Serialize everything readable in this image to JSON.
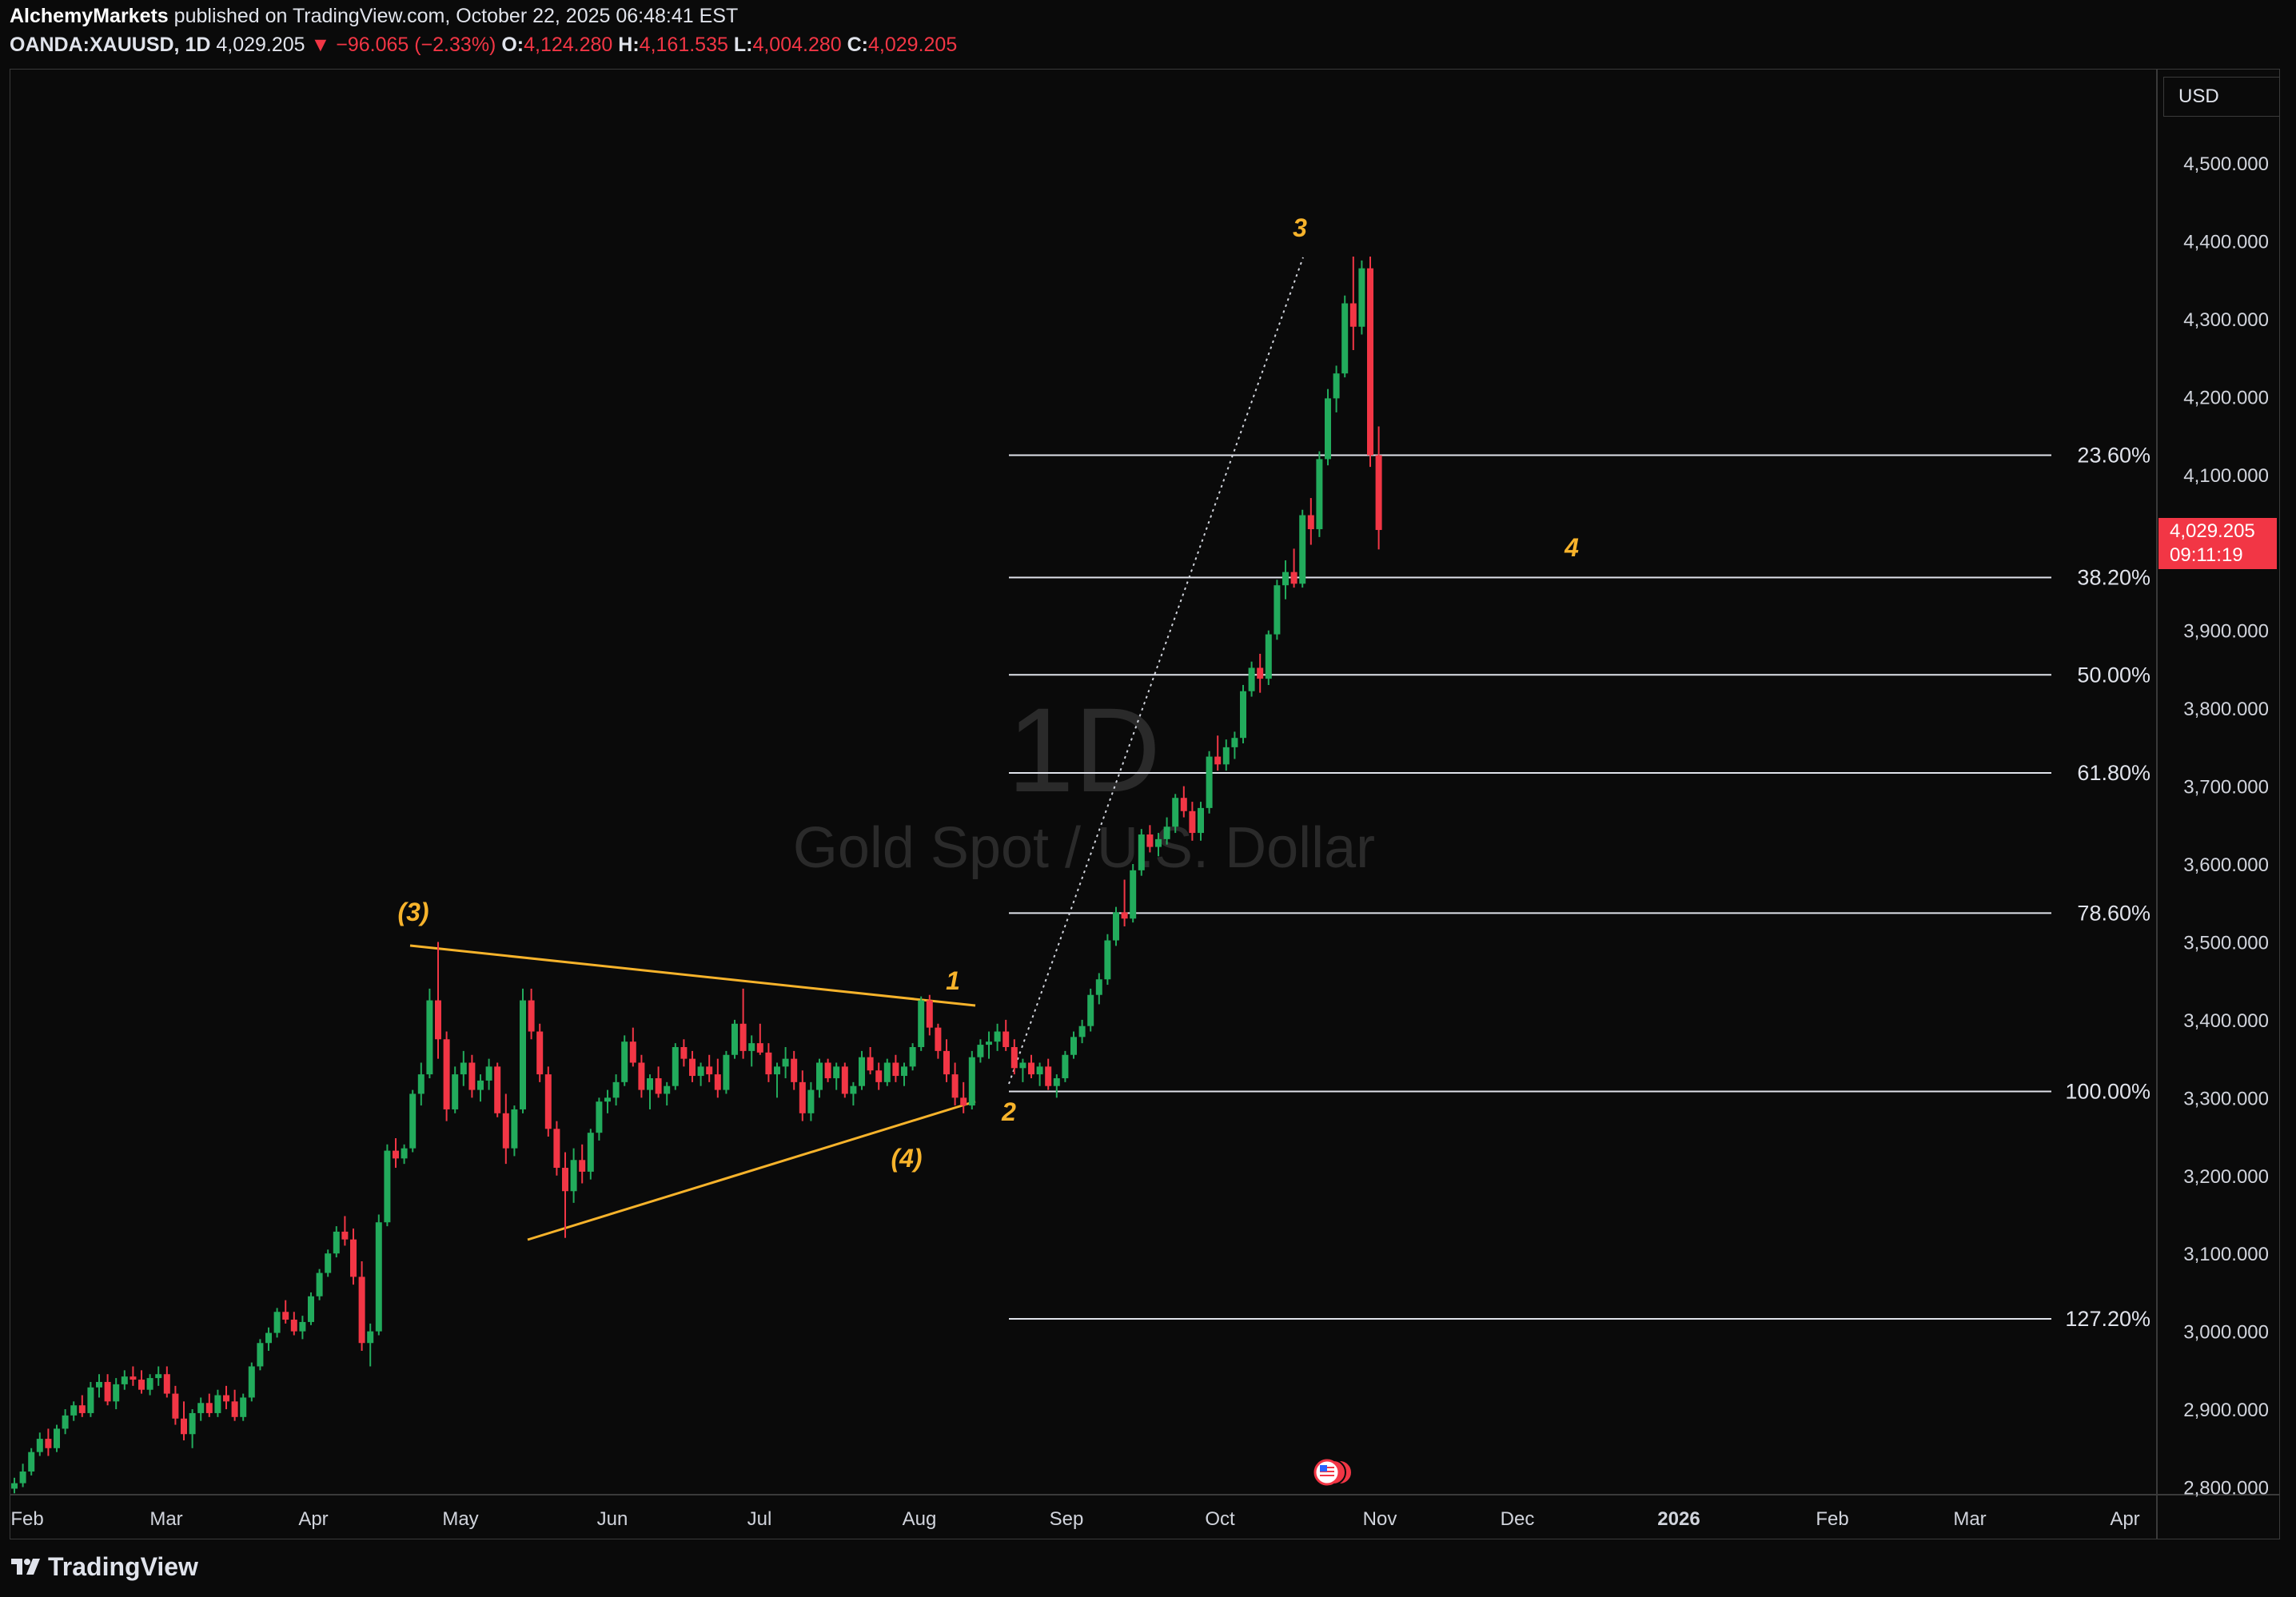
{
  "header": {
    "publisher": "AlchemyMarkets",
    "published_text": "published on TradingView.com, October 22, 2025 06:48:41 EST",
    "symbol": "OANDA:XAUUSD, 1D",
    "last": "4,029.205",
    "change": "▼ −96.065 (−2.33%)",
    "o_label": "O:",
    "o_val": "4,124.280",
    "h_label": "H:",
    "h_val": "4,161.535",
    "l_label": "L:",
    "l_val": "4,004.280",
    "c_label": "C:",
    "c_val": "4,029.205"
  },
  "currency_button": "USD",
  "price_tag": {
    "price": "4,029.205",
    "countdown": "09:11:19"
  },
  "watermark": {
    "interval": "1D",
    "name": "Gold Spot / U.S. Dollar"
  },
  "footer": {
    "brand": "TradingView"
  },
  "colors": {
    "up": "#22ab5c",
    "down": "#f23645",
    "wave": "#f7b32b",
    "fib": "#e0e3eb"
  },
  "chart_data": {
    "type": "candlestick",
    "symbol": "OANDA:XAUUSD",
    "interval": "1D",
    "y_ticks": [
      "4,500.000",
      "4,400.000",
      "4,300.000",
      "4,200.000",
      "4,100.000",
      "4,000.000",
      "3,900.000",
      "3,800.000",
      "3,700.000",
      "3,600.000",
      "3,500.000",
      "3,400.000",
      "3,300.000",
      "3,200.000",
      "3,100.000",
      "3,000.000",
      "2,900.000",
      "2,800.000"
    ],
    "x_ticks": [
      "Feb",
      "Mar",
      "Apr",
      "May",
      "Jun",
      "Jul",
      "Aug",
      "Sep",
      "Oct",
      "Nov",
      "Dec",
      "2026",
      "Feb",
      "Mar",
      "Apr"
    ],
    "ylim": [
      2800,
      4580
    ],
    "fib_levels": [
      {
        "label": "23.60%",
        "price": 4125
      },
      {
        "label": "38.20%",
        "price": 3968
      },
      {
        "label": "50.00%",
        "price": 3843
      },
      {
        "label": "61.80%",
        "price": 3717
      },
      {
        "label": "78.60%",
        "price": 3537
      },
      {
        "label": "100.00%",
        "price": 3308
      },
      {
        "label": "127.20%",
        "price": 3016
      }
    ],
    "wave_labels": [
      "(3)",
      "(4)",
      "1",
      "2",
      "3",
      "4"
    ],
    "candles_approx": [
      [
        0,
        2798,
        2812,
        2792,
        2805
      ],
      [
        1,
        2805,
        2830,
        2800,
        2820
      ],
      [
        2,
        2820,
        2850,
        2815,
        2845
      ],
      [
        3,
        2845,
        2870,
        2840,
        2862
      ],
      [
        4,
        2862,
        2875,
        2840,
        2850
      ],
      [
        5,
        2850,
        2880,
        2845,
        2875
      ],
      [
        6,
        2875,
        2900,
        2868,
        2892
      ],
      [
        7,
        2892,
        2910,
        2885,
        2905
      ],
      [
        8,
        2905,
        2918,
        2890,
        2895
      ],
      [
        9,
        2895,
        2935,
        2890,
        2928
      ],
      [
        10,
        2928,
        2945,
        2915,
        2935
      ],
      [
        11,
        2935,
        2945,
        2905,
        2910
      ],
      [
        12,
        2910,
        2940,
        2900,
        2932
      ],
      [
        13,
        2932,
        2950,
        2925,
        2942
      ],
      [
        14,
        2942,
        2955,
        2930,
        2938
      ],
      [
        15,
        2938,
        2950,
        2920,
        2925
      ],
      [
        16,
        2925,
        2945,
        2918,
        2940
      ],
      [
        17,
        2940,
        2955,
        2930,
        2945
      ],
      [
        18,
        2945,
        2955,
        2915,
        2920
      ],
      [
        19,
        2920,
        2930,
        2880,
        2888
      ],
      [
        20,
        2888,
        2910,
        2860,
        2868
      ],
      [
        21,
        2868,
        2900,
        2850,
        2895
      ],
      [
        22,
        2895,
        2915,
        2885,
        2908
      ],
      [
        23,
        2908,
        2920,
        2890,
        2895
      ],
      [
        24,
        2895,
        2925,
        2890,
        2918
      ],
      [
        25,
        2918,
        2930,
        2900,
        2910
      ],
      [
        26,
        2910,
        2925,
        2885,
        2890
      ],
      [
        27,
        2890,
        2920,
        2885,
        2915
      ],
      [
        28,
        2915,
        2960,
        2910,
        2955
      ],
      [
        29,
        2955,
        2990,
        2950,
        2985
      ],
      [
        30,
        2985,
        3005,
        2975,
        2998
      ],
      [
        31,
        2998,
        3030,
        2992,
        3025
      ],
      [
        32,
        3025,
        3040,
        3010,
        3015
      ],
      [
        33,
        3015,
        3025,
        2995,
        3000
      ],
      [
        34,
        3000,
        3020,
        2990,
        3012
      ],
      [
        35,
        3012,
        3050,
        3008,
        3045
      ],
      [
        36,
        3045,
        3080,
        3040,
        3075
      ],
      [
        37,
        3075,
        3105,
        3070,
        3100
      ],
      [
        38,
        3100,
        3135,
        3095,
        3128
      ],
      [
        39,
        3128,
        3148,
        3110,
        3118
      ],
      [
        40,
        3118,
        3132,
        3060,
        3070
      ],
      [
        41,
        3070,
        3090,
        2975,
        2985
      ],
      [
        42,
        2985,
        3010,
        2955,
        3000
      ],
      [
        43,
        3000,
        3150,
        2995,
        3140
      ],
      [
        44,
        3140,
        3240,
        3135,
        3232
      ],
      [
        45,
        3232,
        3248,
        3210,
        3222
      ],
      [
        46,
        3222,
        3240,
        3215,
        3235
      ],
      [
        47,
        3235,
        3310,
        3230,
        3305
      ],
      [
        48,
        3305,
        3345,
        3290,
        3330
      ],
      [
        49,
        3330,
        3440,
        3325,
        3425
      ],
      [
        50,
        3425,
        3500,
        3350,
        3375
      ],
      [
        51,
        3375,
        3385,
        3270,
        3285
      ],
      [
        52,
        3285,
        3340,
        3280,
        3330
      ],
      [
        53,
        3330,
        3360,
        3315,
        3345
      ],
      [
        54,
        3345,
        3355,
        3300,
        3310
      ],
      [
        55,
        3310,
        3330,
        3295,
        3322
      ],
      [
        56,
        3322,
        3350,
        3310,
        3340
      ],
      [
        57,
        3340,
        3345,
        3275,
        3280
      ],
      [
        58,
        3280,
        3305,
        3215,
        3235
      ],
      [
        59,
        3235,
        3290,
        3225,
        3285
      ],
      [
        60,
        3285,
        3440,
        3280,
        3425
      ],
      [
        61,
        3425,
        3440,
        3375,
        3385
      ],
      [
        62,
        3385,
        3395,
        3320,
        3330
      ],
      [
        63,
        3330,
        3340,
        3250,
        3260
      ],
      [
        64,
        3260,
        3270,
        3200,
        3210
      ],
      [
        65,
        3210,
        3230,
        3120,
        3180
      ],
      [
        66,
        3180,
        3235,
        3165,
        3220
      ],
      [
        67,
        3220,
        3240,
        3190,
        3205
      ],
      [
        68,
        3205,
        3260,
        3195,
        3255
      ],
      [
        69,
        3255,
        3300,
        3245,
        3295
      ],
      [
        70,
        3295,
        3310,
        3280,
        3300
      ],
      [
        71,
        3300,
        3330,
        3290,
        3320
      ],
      [
        72,
        3320,
        3380,
        3315,
        3372
      ],
      [
        73,
        3372,
        3390,
        3340,
        3345
      ],
      [
        74,
        3345,
        3355,
        3300,
        3310
      ],
      [
        75,
        3310,
        3330,
        3285,
        3325
      ],
      [
        76,
        3325,
        3340,
        3300,
        3305
      ],
      [
        77,
        3305,
        3320,
        3290,
        3315
      ],
      [
        78,
        3315,
        3370,
        3310,
        3365
      ],
      [
        79,
        3365,
        3375,
        3340,
        3350
      ],
      [
        80,
        3350,
        3360,
        3320,
        3328
      ],
      [
        81,
        3328,
        3345,
        3315,
        3340
      ],
      [
        82,
        3340,
        3355,
        3320,
        3330
      ],
      [
        83,
        3330,
        3350,
        3300,
        3310
      ],
      [
        84,
        3310,
        3360,
        3305,
        3355
      ],
      [
        85,
        3355,
        3400,
        3350,
        3395
      ],
      [
        86,
        3395,
        3440,
        3350,
        3360
      ],
      [
        87,
        3360,
        3380,
        3340,
        3370
      ],
      [
        88,
        3370,
        3395,
        3355,
        3358
      ],
      [
        89,
        3358,
        3370,
        3320,
        3330
      ],
      [
        90,
        3330,
        3345,
        3300,
        3340
      ],
      [
        91,
        3340,
        3365,
        3325,
        3350
      ],
      [
        92,
        3350,
        3360,
        3310,
        3320
      ],
      [
        93,
        3320,
        3335,
        3270,
        3280
      ],
      [
        94,
        3280,
        3320,
        3270,
        3310
      ],
      [
        95,
        3310,
        3350,
        3300,
        3345
      ],
      [
        96,
        3345,
        3350,
        3320,
        3325
      ],
      [
        97,
        3325,
        3345,
        3310,
        3340
      ],
      [
        98,
        3340,
        3345,
        3300,
        3305
      ],
      [
        99,
        3305,
        3320,
        3290,
        3315
      ],
      [
        100,
        3315,
        3360,
        3310,
        3352
      ],
      [
        101,
        3352,
        3365,
        3330,
        3335
      ],
      [
        102,
        3335,
        3345,
        3310,
        3320
      ],
      [
        103,
        3320,
        3350,
        3315,
        3345
      ],
      [
        104,
        3345,
        3355,
        3320,
        3328
      ],
      [
        105,
        3328,
        3345,
        3315,
        3340
      ],
      [
        106,
        3340,
        3370,
        3335,
        3365
      ],
      [
        107,
        3365,
        3430,
        3360,
        3425
      ],
      [
        108,
        3425,
        3432,
        3380,
        3390
      ],
      [
        109,
        3390,
        3395,
        3350,
        3360
      ],
      [
        110,
        3360,
        3375,
        3320,
        3330
      ],
      [
        111,
        3330,
        3345,
        3290,
        3300
      ],
      [
        112,
        3300,
        3320,
        3280,
        3290
      ],
      [
        113,
        3290,
        3360,
        3285,
        3352
      ],
      [
        114,
        3352,
        3375,
        3345,
        3368
      ],
      [
        115,
        3368,
        3385,
        3350,
        3372
      ],
      [
        116,
        3372,
        3395,
        3360,
        3385
      ],
      [
        117,
        3385,
        3400,
        3360,
        3365
      ],
      [
        118,
        3365,
        3375,
        3330,
        3338
      ],
      [
        119,
        3338,
        3350,
        3320,
        3345
      ],
      [
        120,
        3345,
        3355,
        3325,
        3330
      ],
      [
        121,
        3330,
        3345,
        3315,
        3340
      ],
      [
        122,
        3340,
        3350,
        3310,
        3315
      ],
      [
        123,
        3315,
        3330,
        3300,
        3325
      ],
      [
        124,
        3325,
        3360,
        3320,
        3355
      ],
      [
        125,
        3355,
        3385,
        3350,
        3378
      ],
      [
        126,
        3378,
        3400,
        3370,
        3392
      ],
      [
        127,
        3392,
        3440,
        3385,
        3432
      ],
      [
        128,
        3432,
        3460,
        3420,
        3452
      ],
      [
        129,
        3452,
        3510,
        3445,
        3502
      ],
      [
        130,
        3502,
        3545,
        3495,
        3538
      ],
      [
        131,
        3538,
        3580,
        3520,
        3530
      ],
      [
        132,
        3530,
        3600,
        3525,
        3592
      ],
      [
        133,
        3592,
        3645,
        3585,
        3638
      ],
      [
        134,
        3638,
        3650,
        3615,
        3622
      ],
      [
        135,
        3622,
        3640,
        3610,
        3632
      ],
      [
        136,
        3632,
        3660,
        3625,
        3648
      ],
      [
        137,
        3648,
        3690,
        3640,
        3685
      ],
      [
        138,
        3685,
        3700,
        3660,
        3668
      ],
      [
        139,
        3668,
        3680,
        3630,
        3640
      ],
      [
        140,
        3640,
        3680,
        3630,
        3672
      ],
      [
        141,
        3672,
        3745,
        3665,
        3738
      ],
      [
        142,
        3738,
        3765,
        3720,
        3728
      ],
      [
        143,
        3728,
        3760,
        3720,
        3750
      ],
      [
        144,
        3750,
        3770,
        3735,
        3762
      ],
      [
        145,
        3762,
        3830,
        3755,
        3822
      ],
      [
        146,
        3822,
        3860,
        3815,
        3852
      ],
      [
        147,
        3852,
        3870,
        3820,
        3838
      ],
      [
        148,
        3838,
        3900,
        3830,
        3895
      ],
      [
        149,
        3895,
        3965,
        3888,
        3958
      ],
      [
        150,
        3958,
        3990,
        3940,
        3975
      ],
      [
        151,
        3975,
        4005,
        3955,
        3960
      ],
      [
        152,
        3960,
        4055,
        3955,
        4048
      ],
      [
        153,
        4048,
        4070,
        4010,
        4030
      ],
      [
        154,
        4030,
        4130,
        4020,
        4120
      ],
      [
        155,
        4120,
        4210,
        4112,
        4198
      ],
      [
        156,
        4198,
        4240,
        4180,
        4230
      ],
      [
        157,
        4230,
        4330,
        4225,
        4320
      ],
      [
        158,
        4320,
        4380,
        4260,
        4290
      ],
      [
        159,
        4290,
        4375,
        4280,
        4365
      ],
      [
        160,
        4365,
        4380,
        4110,
        4125
      ],
      [
        161,
        4125,
        4162,
        4004,
        4029
      ]
    ]
  }
}
